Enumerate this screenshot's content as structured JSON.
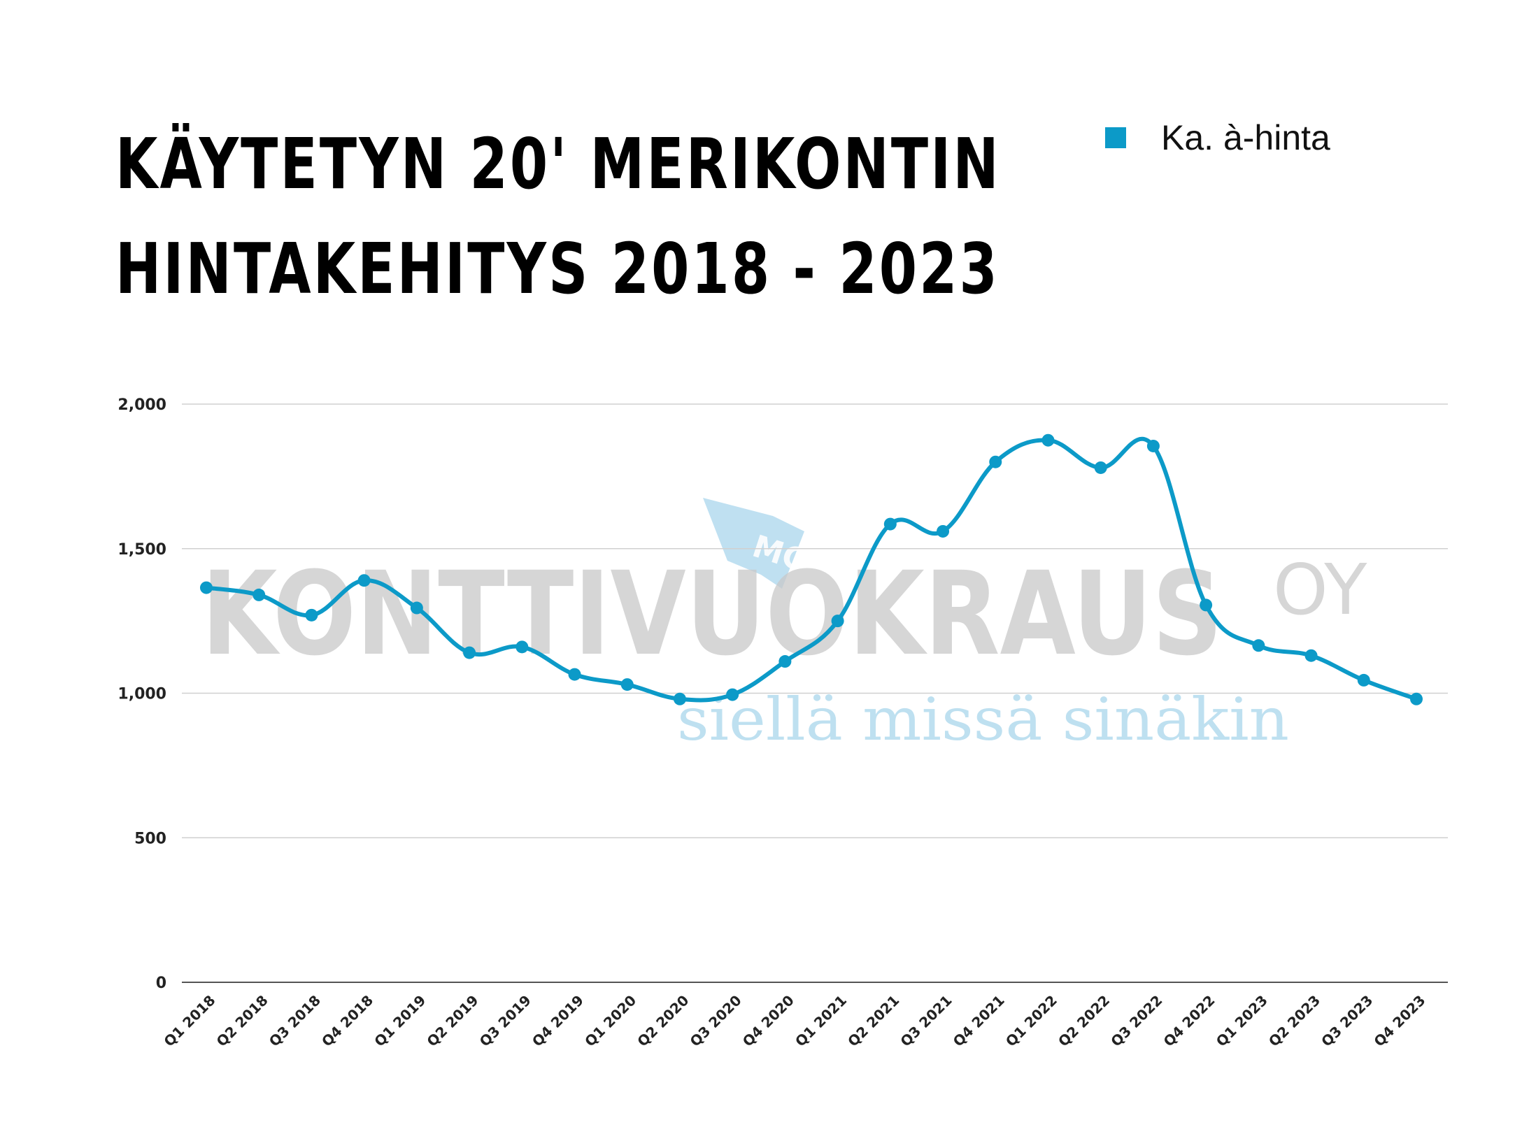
{
  "colors": {
    "series": "#0c9ac8",
    "grid": "#d0d0d0",
    "axis": "#555555",
    "watermark_gray": "#c9c9c9",
    "watermark_blue": "#a9d6ec"
  },
  "watermark": {
    "brand_main": "KONTTIVUOKRAUS",
    "brand_suffix": "OY",
    "tagline": "siellä missä sinäkin",
    "logo_text": "MC"
  },
  "chart_data": {
    "type": "line",
    "title": "KÄYTETYN 20' MERIKONTIN HINTAKEHITYS 2018 - 2023",
    "title_lines": [
      "KÄYTETYN 20' MERIKONTIN",
      "HINTAKEHITYS 2018 - 2023"
    ],
    "xlabel": "",
    "ylabel": "",
    "ylim": [
      0,
      2000
    ],
    "yticks": [
      "0",
      "500",
      "1,000",
      "1,500",
      "2,000"
    ],
    "ytick_values": [
      0,
      500,
      1000,
      1500,
      2000
    ],
    "grid": true,
    "legend_position": "top-right",
    "categories": [
      "Q1 2018",
      "Q2 2018",
      "Q3 2018",
      "Q4 2018",
      "Q1 2019",
      "Q2 2019",
      "Q3 2019",
      "Q4 2019",
      "Q1 2020",
      "Q2 2020",
      "Q3 2020",
      "Q4 2020",
      "Q1 2021",
      "Q2 2021",
      "Q3 2021",
      "Q4 2021",
      "Q1 2022",
      "Q2 2022",
      "Q3 2022",
      "Q4 2022",
      "Q1 2023",
      "Q2 2023",
      "Q3 2023",
      "Q4 2023"
    ],
    "series": [
      {
        "name": "Ka. à-hinta",
        "values": [
          1365,
          1340,
          1270,
          1390,
          1295,
          1140,
          1160,
          1065,
          1030,
          980,
          995,
          1110,
          1250,
          1585,
          1560,
          1800,
          1875,
          1780,
          1855,
          1305,
          1165,
          1130,
          1045,
          980
        ]
      }
    ]
  }
}
